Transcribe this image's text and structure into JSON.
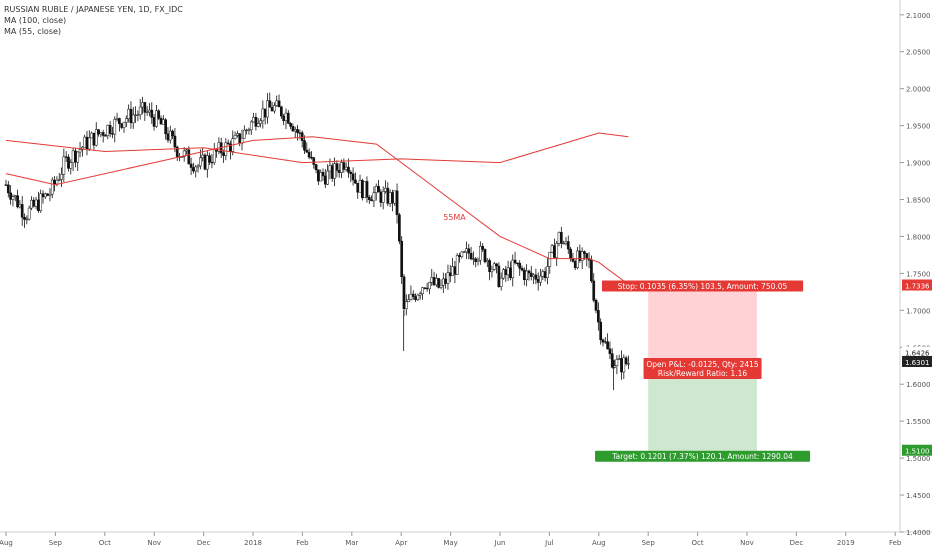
{
  "legend": {
    "title": "RUSSIAN RUBLE / JAPANESE YEN, 1D, FX_IDC",
    "ma100": "MA (100, close)",
    "ma55": "MA (55, close)"
  },
  "chart_data": {
    "type": "candlestick",
    "ylim": [
      1.4,
      2.12
    ],
    "y_ticks": [
      "2.1000",
      "2.0500",
      "2.0000",
      "1.9500",
      "1.9000",
      "1.8500",
      "1.8000",
      "1.7500",
      "1.7000",
      "1.6500",
      "1.6000",
      "1.5500",
      "1.5000",
      "1.4500",
      "1.4000"
    ],
    "y_tick_values": [
      2.1,
      2.05,
      2.0,
      1.95,
      1.9,
      1.85,
      1.8,
      1.75,
      1.7,
      1.65,
      1.6,
      1.55,
      1.5,
      1.45,
      1.4
    ],
    "x_ticks": [
      "Aug",
      "Sep",
      "Oct",
      "Nov",
      "Dec",
      "2018",
      "Feb",
      "Mar",
      "Apr",
      "May",
      "Jun",
      "Jul",
      "Aug",
      "Sep",
      "Oct",
      "Nov",
      "Dec",
      "2019",
      "Feb"
    ],
    "x_tick_months": [
      0,
      1,
      2,
      3,
      4,
      5,
      6,
      7,
      8,
      9,
      10,
      11,
      12,
      13,
      14,
      15,
      16,
      17,
      18
    ],
    "price_labels": {
      "stop": "1.7336",
      "current": "1.6426",
      "last": "1.6301",
      "target": "1.5100"
    },
    "price_values": {
      "stop": 1.7336,
      "current": 1.6426,
      "last": 1.6301,
      "target": 1.51
    },
    "series": [
      {
        "name": "MA (100, close)",
        "color": "#e53935",
        "x": [
          0,
          2,
          4,
          6,
          8,
          10,
          12,
          12.6
        ],
        "y": [
          1.93,
          1.915,
          1.92,
          1.9,
          1.905,
          1.9,
          1.94,
          1.935
        ]
      },
      {
        "name": "MA (55, close)",
        "color": "#e53935",
        "x": [
          0,
          1,
          3,
          5,
          6.2,
          7.5,
          8.2,
          9,
          10,
          11,
          11.8,
          12,
          12.6
        ],
        "y": [
          1.885,
          1.87,
          1.9,
          1.93,
          1.935,
          1.925,
          1.89,
          1.85,
          1.8,
          1.77,
          1.77,
          1.765,
          1.735
        ]
      }
    ],
    "price_path": {
      "x": [
        0,
        0.4,
        0.9,
        1.2,
        1.6,
        2.0,
        2.4,
        2.8,
        3.1,
        3.5,
        3.9,
        4.3,
        4.7,
        5.1,
        5.4,
        5.7,
        6.0,
        6.3,
        6.6,
        6.9,
        7.1,
        7.3,
        7.6,
        7.9,
        8.05,
        8.25,
        8.5,
        8.8,
        9.1,
        9.4,
        9.7,
        10.0,
        10.3,
        10.6,
        10.9,
        11.2,
        11.5,
        11.8,
        12.0,
        12.2,
        12.4,
        12.6
      ],
      "y": [
        1.87,
        1.83,
        1.86,
        1.9,
        1.925,
        1.945,
        1.96,
        1.97,
        1.955,
        1.915,
        1.895,
        1.915,
        1.93,
        1.965,
        1.975,
        1.965,
        1.93,
        1.88,
        1.885,
        1.905,
        1.87,
        1.86,
        1.855,
        1.85,
        1.7,
        1.72,
        1.74,
        1.73,
        1.76,
        1.78,
        1.775,
        1.74,
        1.76,
        1.745,
        1.75,
        1.8,
        1.77,
        1.765,
        1.68,
        1.64,
        1.625,
        1.63
      ]
    },
    "annotations": {
      "ma_label": "55MA",
      "stop_text": "Stop: 0.1035 (6.35%) 103.5, Amount: 750.05",
      "pnl_text": "Open P&L: -0.0125, Qty: 2415",
      "rr_text": "Risk/Reward Ratio: 1.16",
      "target_text": "Target: 0.1201 (7.37%) 120.1, Amount: 1290.04"
    },
    "position": {
      "entry": 1.6301,
      "stop": 1.7336,
      "target": 1.51,
      "x_start": 13.0,
      "x_end": 15.2
    },
    "colors": {
      "candle": "#111111",
      "ma": "#e53935",
      "stop_zone": "#ffcdd2",
      "target_zone": "#c8e6c9",
      "stop_label": "#e53935",
      "target_label": "#2e9b2e",
      "axis_text": "#555555"
    }
  }
}
